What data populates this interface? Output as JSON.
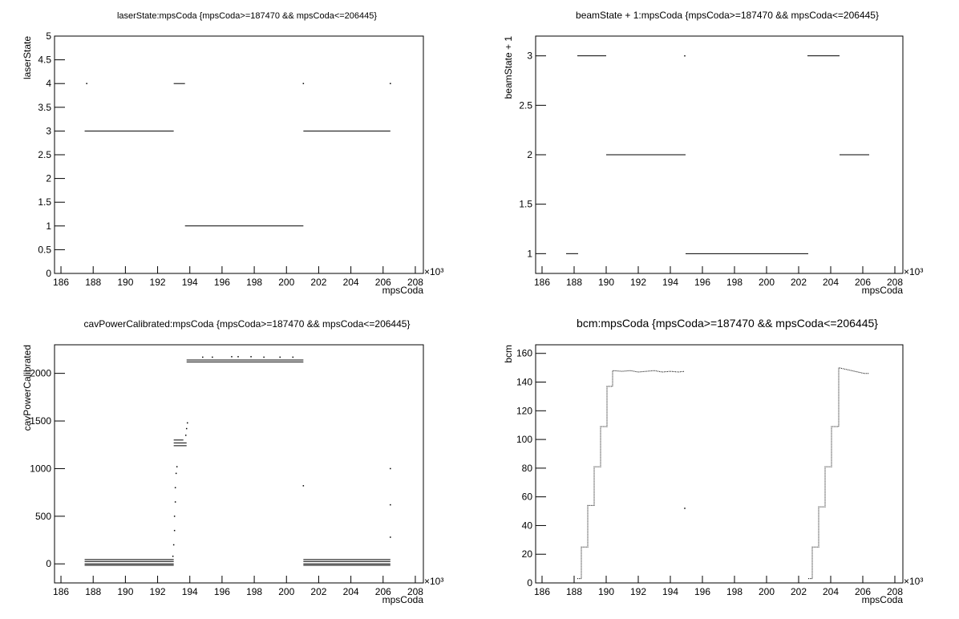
{
  "chart_data": [
    {
      "type": "line",
      "title": "laserState:mpsCoda {mpsCoda>=187470 && mpsCoda<=206445}",
      "x_label": "mpsCoda",
      "y_label": "laserState",
      "x_scale_label": "×10³",
      "color": "#000000",
      "x": [
        187.47,
        193.0,
        null,
        193.0,
        193.7,
        null,
        193.7,
        201.05,
        null,
        201.05,
        206.45,
        null,
        187.6,
        null,
        201.05,
        null,
        206.45
      ],
      "values": [
        3,
        3,
        null,
        4,
        4,
        null,
        1,
        1,
        null,
        3,
        3,
        null,
        4,
        null,
        4,
        null,
        4
      ],
      "xlim": [
        185.6,
        208.5
      ],
      "xticks": [
        186,
        188,
        190,
        192,
        194,
        196,
        198,
        200,
        202,
        204,
        206,
        208
      ],
      "ylim": [
        0,
        5
      ],
      "yticks": [
        0,
        0.5,
        1,
        1.5,
        2,
        2.5,
        3,
        3.5,
        4,
        4.5,
        5
      ]
    },
    {
      "type": "line",
      "title": "beamState + 1:mpsCoda {mpsCoda>=187470 && mpsCoda<=206445}",
      "x_label": "mpsCoda",
      "y_label": "beamState + 1",
      "x_scale_label": "×10³",
      "color": "#000000",
      "x": [
        187.5,
        188.25,
        null,
        188.2,
        190.0,
        null,
        190.0,
        194.95,
        null,
        194.9,
        null,
        194.95,
        202.6,
        null,
        202.55,
        204.55,
        null,
        204.55,
        206.4
      ],
      "values": [
        1,
        1,
        null,
        3,
        3,
        null,
        2,
        2,
        null,
        3,
        null,
        1,
        1,
        null,
        3,
        3,
        null,
        2,
        2
      ],
      "xlim": [
        185.6,
        208.5
      ],
      "xticks": [
        186,
        188,
        190,
        192,
        194,
        196,
        198,
        200,
        202,
        204,
        206,
        208
      ],
      "ylim": [
        0.8,
        3.2
      ],
      "yticks": [
        1,
        1.5,
        2,
        2.5,
        3
      ]
    },
    {
      "type": "line",
      "title": "cavPowerCalibrated:mpsCoda {mpsCoda>=187470 && mpsCoda<=206445}",
      "x_label": "mpsCoda",
      "y_label": "cavPowerCalibrated",
      "x_scale_label": "×10³",
      "color": "#000000",
      "x": [
        187.47,
        193.0,
        null,
        187.47,
        193.0,
        null,
        187.47,
        193.0,
        null,
        187.47,
        193.0,
        null,
        192.95,
        null,
        193.0,
        null,
        193.05,
        null,
        193.05,
        null,
        193.1,
        null,
        193.1,
        null,
        193.15,
        null,
        193.2,
        null,
        193.0,
        193.8,
        null,
        193.0,
        193.8,
        null,
        193.0,
        193.6,
        null,
        193.75,
        null,
        193.8,
        null,
        193.85,
        null,
        193.8,
        201.05,
        null,
        193.8,
        201.05,
        null,
        194.8,
        null,
        195.4,
        null,
        196.6,
        null,
        197.0,
        null,
        197.8,
        null,
        198.6,
        null,
        199.6,
        null,
        200.4,
        null,
        201.05,
        null,
        201.05,
        206.45,
        null,
        201.05,
        206.45,
        null,
        201.05,
        206.45,
        null,
        201.05,
        206.45,
        null,
        206.45,
        null,
        206.45,
        null,
        206.45
      ],
      "values": [
        45,
        45,
        null,
        25,
        25,
        null,
        0,
        0,
        null,
        -15,
        -15,
        null,
        80,
        null,
        200,
        null,
        350,
        null,
        500,
        null,
        650,
        null,
        800,
        null,
        950,
        null,
        1020,
        null,
        1240,
        1240,
        null,
        1270,
        1270,
        null,
        1300,
        1300,
        null,
        1350,
        null,
        1420,
        null,
        1480,
        null,
        2120,
        2120,
        null,
        2140,
        2140,
        null,
        2170,
        null,
        2170,
        null,
        2175,
        null,
        2175,
        null,
        2175,
        null,
        2170,
        null,
        2170,
        null,
        2170,
        null,
        820,
        null,
        45,
        45,
        null,
        25,
        25,
        null,
        0,
        0,
        null,
        -15,
        -15,
        null,
        1000,
        null,
        620,
        null,
        280
      ],
      "xlim": [
        185.6,
        208.5
      ],
      "xticks": [
        186,
        188,
        190,
        192,
        194,
        196,
        198,
        200,
        202,
        204,
        206,
        208
      ],
      "ylim": [
        -200,
        2300
      ],
      "yticks": [
        0,
        500,
        1000,
        1500,
        2000
      ]
    },
    {
      "type": "line",
      "title": "bcm:mpsCoda {mpsCoda>=187470 && mpsCoda<=206445}",
      "x_label": "mpsCoda",
      "y_label": "bcm",
      "x_scale_label": "×10³",
      "color": "#000000",
      "x": [
        188.2,
        188.45,
        188.45,
        188.85,
        188.85,
        189.25,
        189.25,
        189.65,
        189.65,
        190.05,
        190.05,
        190.4,
        190.4,
        191,
        191.5,
        192,
        192.5,
        193,
        193.5,
        194,
        194.5,
        194.9,
        null,
        194.9,
        null,
        202.6,
        202.85,
        202.85,
        203.25,
        203.25,
        203.65,
        203.65,
        204.05,
        204.05,
        204.5,
        204.5,
        204.9,
        205.3,
        205.7,
        206.1,
        206.4
      ],
      "values": [
        3,
        3,
        25,
        25,
        54,
        54,
        81,
        81,
        109,
        109,
        137,
        137,
        148,
        147.5,
        148,
        147,
        147.5,
        148,
        147,
        147.5,
        147,
        147.5,
        null,
        52,
        null,
        3,
        3,
        25,
        25,
        53,
        53,
        81,
        81,
        109,
        109,
        150,
        149,
        148,
        147,
        146,
        146
      ],
      "xlim": [
        185.6,
        208.5
      ],
      "xticks": [
        186,
        188,
        190,
        192,
        194,
        196,
        198,
        200,
        202,
        204,
        206,
        208
      ],
      "ylim": [
        0,
        166
      ],
      "yticks": [
        0,
        20,
        40,
        60,
        80,
        100,
        120,
        140,
        160
      ]
    }
  ]
}
